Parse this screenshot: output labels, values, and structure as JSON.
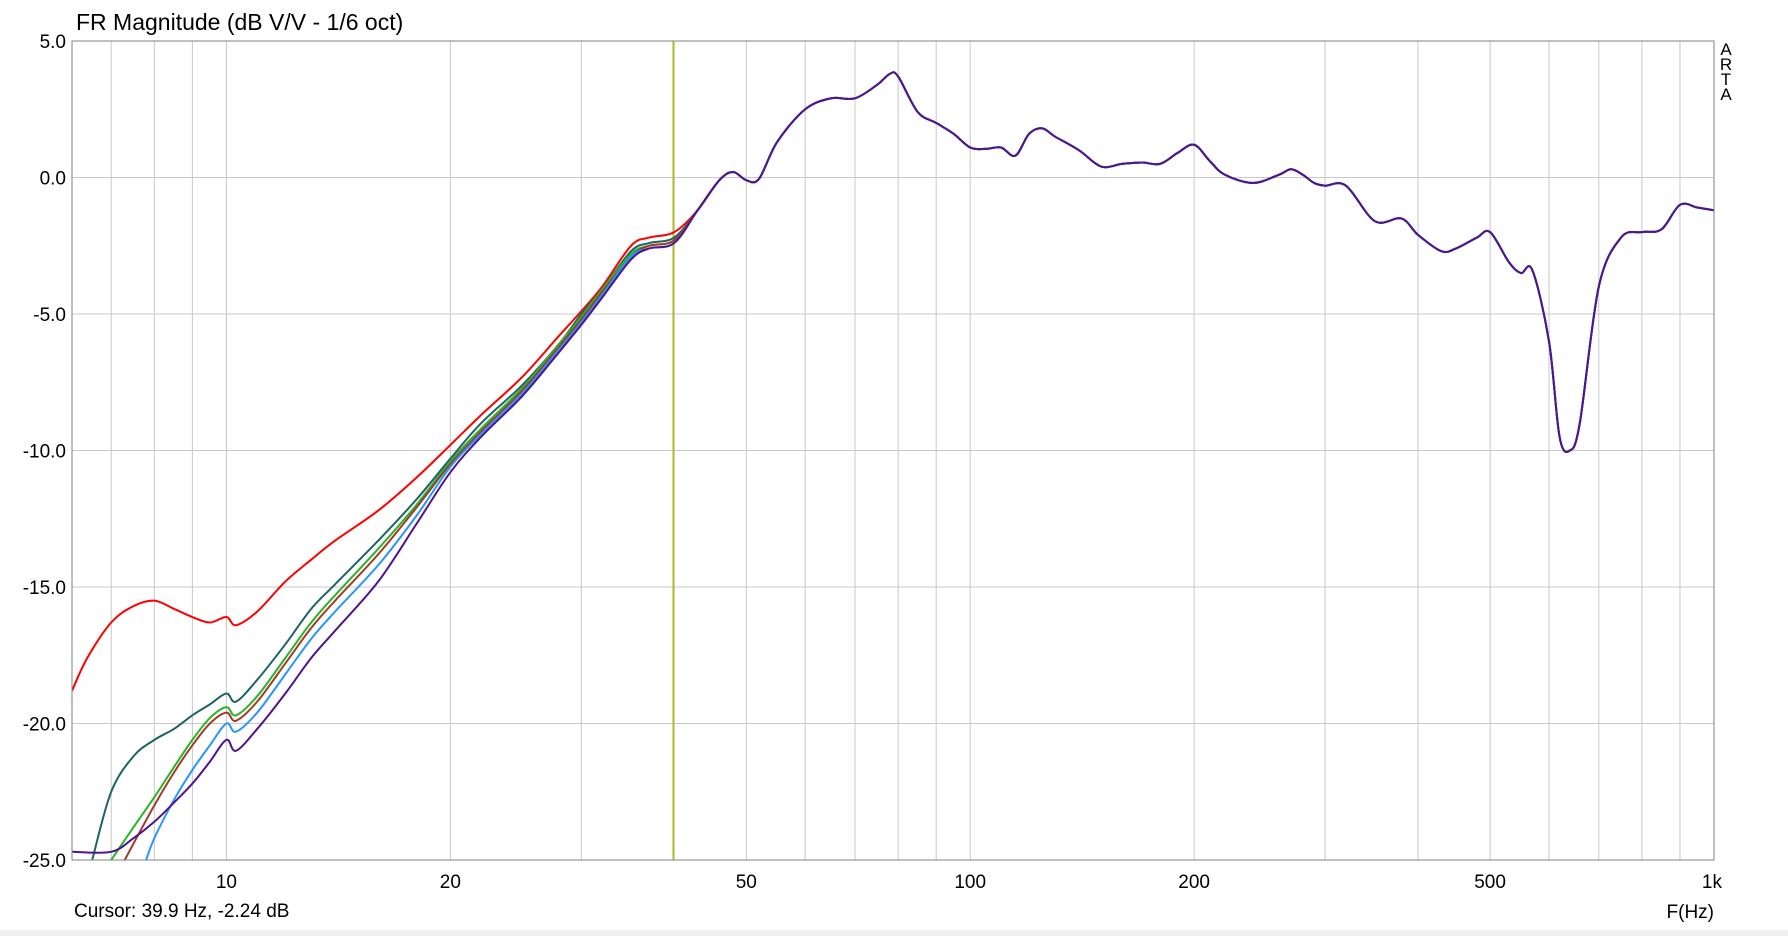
{
  "title": "FR Magnitude (dB V/V - 1/6 oct)",
  "cursor_readout": "Cursor: 39.9 Hz, -2.24 dB",
  "brand": [
    "A",
    "R",
    "T",
    "A"
  ],
  "colors": {
    "background": "#ffffff",
    "grid": "#c8c8c8",
    "frame": "#808080",
    "cursor_line": "#b4be32"
  },
  "chart_data": {
    "type": "line",
    "title": "FR Magnitude (dB V/V - 1/6 oct)",
    "xlabel": "F(Hz)",
    "ylabel": "",
    "x_scale": "log",
    "xlim": [
      6.2,
      1000
    ],
    "ylim": [
      -25,
      5
    ],
    "grid": true,
    "x_ticks": [
      {
        "value": 10,
        "label": "10"
      },
      {
        "value": 20,
        "label": "20"
      },
      {
        "value": 50,
        "label": "50"
      },
      {
        "value": 100,
        "label": "100"
      },
      {
        "value": 200,
        "label": "200"
      },
      {
        "value": 500,
        "label": "500"
      },
      {
        "value": 1000,
        "label": "1k"
      }
    ],
    "y_ticks": [
      {
        "value": 5,
        "label": "5.0"
      },
      {
        "value": 0,
        "label": "0.0"
      },
      {
        "value": -5,
        "label": "-5.0"
      },
      {
        "value": -10,
        "label": "-10.0"
      },
      {
        "value": -15,
        "label": "-15.0"
      },
      {
        "value": -20,
        "label": "-20.0"
      },
      {
        "value": -25,
        "label": "-25.0"
      }
    ],
    "cursor": {
      "x": 39.9,
      "y": -2.24
    },
    "common_response": {
      "x": [
        40,
        43,
        46,
        48,
        50,
        52,
        55,
        60,
        65,
        70,
        75,
        78,
        80,
        85,
        90,
        95,
        100,
        105,
        110,
        115,
        120,
        125,
        130,
        140,
        150,
        160,
        170,
        180,
        190,
        200,
        210,
        220,
        240,
        260,
        270,
        280,
        290,
        300,
        320,
        350,
        380,
        400,
        430,
        450,
        480,
        500,
        530,
        550,
        570,
        600,
        620,
        640,
        660,
        700,
        750,
        800,
        850,
        900,
        950,
        1000
      ],
      "y": [
        -2.2,
        -1.2,
        -0.1,
        0.2,
        -0.1,
        -0.05,
        1.3,
        2.5,
        2.9,
        2.9,
        3.4,
        3.8,
        3.7,
        2.4,
        2.0,
        1.6,
        1.1,
        1.05,
        1.1,
        0.8,
        1.6,
        1.8,
        1.5,
        1.0,
        0.4,
        0.5,
        0.55,
        0.5,
        0.9,
        1.2,
        0.6,
        0.1,
        -0.2,
        0.1,
        0.3,
        0.1,
        -0.2,
        -0.3,
        -0.3,
        -1.6,
        -1.5,
        -2.1,
        -2.7,
        -2.6,
        -2.2,
        -2.0,
        -3.1,
        -3.5,
        -3.4,
        -6.0,
        -9.5,
        -10.0,
        -9.0,
        -4.0,
        -2.2,
        -2.0,
        -1.9,
        -1.0,
        -1.1,
        -1.2
      ]
    },
    "series": [
      {
        "color": "#ff0000",
        "x": [
          6.2,
          6.5,
          7,
          7.5,
          8,
          8.5,
          9,
          9.5,
          10,
          10.3,
          11,
          12,
          13,
          14,
          16,
          18,
          20,
          22,
          25,
          28,
          30,
          32,
          35,
          37,
          40
        ],
        "y": [
          -18.8,
          -17.6,
          -16.3,
          -15.7,
          -15.5,
          -15.8,
          -16.1,
          -16.3,
          -16.1,
          -16.4,
          -15.9,
          -14.8,
          -14.0,
          -13.3,
          -12.2,
          -11.0,
          -9.8,
          -8.7,
          -7.3,
          -5.8,
          -4.9,
          -4.0,
          -2.5,
          -2.2,
          -2.0
        ]
      },
      {
        "color": "#1e6464",
        "x": [
          6.6,
          7,
          7.5,
          8,
          8.5,
          9,
          9.5,
          10,
          10.3,
          11,
          12,
          13,
          14,
          16,
          18,
          20,
          22,
          25,
          28,
          30,
          32,
          35,
          37,
          40
        ],
        "y": [
          -25.0,
          -22.5,
          -21.2,
          -20.6,
          -20.2,
          -19.7,
          -19.3,
          -18.9,
          -19.2,
          -18.4,
          -17.1,
          -15.8,
          -14.9,
          -13.3,
          -11.8,
          -10.3,
          -9.0,
          -7.6,
          -6.1,
          -5.0,
          -4.1,
          -2.7,
          -2.4,
          -2.2
        ]
      },
      {
        "color": "#28b428",
        "x": [
          7,
          7.5,
          8,
          8.5,
          9,
          9.5,
          10,
          10.3,
          11,
          12,
          13,
          14,
          16,
          18,
          20,
          22,
          25,
          28,
          30,
          32,
          35,
          37,
          40
        ],
        "y": [
          -25.0,
          -23.8,
          -22.7,
          -21.6,
          -20.6,
          -19.8,
          -19.4,
          -19.7,
          -19.0,
          -17.6,
          -16.3,
          -15.3,
          -13.6,
          -12.0,
          -10.4,
          -9.2,
          -7.7,
          -6.1,
          -5.1,
          -4.1,
          -2.8,
          -2.5,
          -2.3
        ]
      },
      {
        "color": "#a03c28",
        "x": [
          7.3,
          7.5,
          8,
          8.5,
          9,
          9.5,
          10,
          10.3,
          11,
          12,
          13,
          14,
          16,
          18,
          20,
          22,
          25,
          28,
          30,
          32,
          35,
          37,
          40
        ],
        "y": [
          -25.0,
          -24.4,
          -23.0,
          -21.8,
          -20.8,
          -20.0,
          -19.6,
          -19.9,
          -19.2,
          -17.8,
          -16.5,
          -15.5,
          -13.8,
          -12.1,
          -10.5,
          -9.3,
          -7.8,
          -6.2,
          -5.2,
          -4.2,
          -2.9,
          -2.5,
          -2.3
        ]
      },
      {
        "color": "#2896ff",
        "x": [
          7.8,
          8,
          8.5,
          9,
          9.5,
          10,
          10.3,
          11,
          12,
          13,
          14,
          16,
          18,
          20,
          22,
          25,
          28,
          30,
          32,
          35,
          37,
          40
        ],
        "y": [
          -25.0,
          -24.2,
          -22.8,
          -21.7,
          -20.8,
          -20.0,
          -20.3,
          -19.6,
          -18.2,
          -16.9,
          -15.9,
          -14.2,
          -12.4,
          -10.6,
          -9.4,
          -7.9,
          -6.3,
          -5.3,
          -4.3,
          -2.9,
          -2.6,
          -2.4
        ]
      },
      {
        "color": "#50148c",
        "x": [
          6.2,
          7,
          7.5,
          8,
          8.5,
          9,
          9.5,
          10,
          10.3,
          11,
          12,
          13,
          14,
          16,
          18,
          20,
          22,
          25,
          28,
          30,
          32,
          35,
          37,
          40
        ],
        "y": [
          -24.7,
          -24.7,
          -24.2,
          -23.6,
          -22.9,
          -22.2,
          -21.4,
          -20.6,
          -21.0,
          -20.2,
          -18.9,
          -17.6,
          -16.6,
          -14.8,
          -12.7,
          -10.8,
          -9.5,
          -8.0,
          -6.4,
          -5.4,
          -4.4,
          -3.0,
          -2.6,
          -2.4
        ]
      }
    ]
  }
}
